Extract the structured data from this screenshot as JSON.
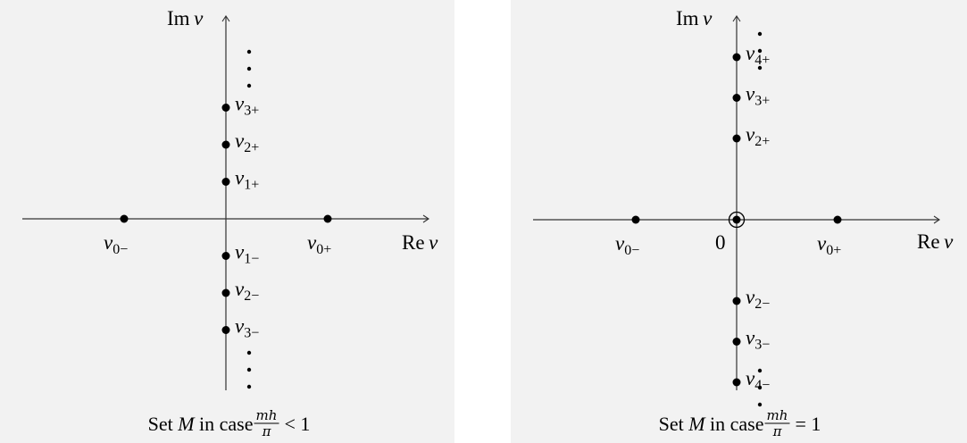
{
  "panels": [
    {
      "id": "left",
      "axis": {
        "im_label": "Im",
        "re_label": "Re",
        "var": "ν"
      },
      "caption": {
        "prefix": "Set",
        "set_name": "M",
        "mid": "in case",
        "num": "mh",
        "den": "π",
        "relation": "< 1"
      },
      "real_points": [
        {
          "name": "ν0−",
          "base": "ν",
          "sub": "0−",
          "re": -1
        },
        {
          "name": "ν0+",
          "base": "ν",
          "sub": "0+",
          "re": 1
        }
      ],
      "imag_points": [
        {
          "base": "ν",
          "sub": "3+",
          "im": 3
        },
        {
          "base": "ν",
          "sub": "2+",
          "im": 2
        },
        {
          "base": "ν",
          "sub": "1+",
          "im": 1
        },
        {
          "base": "ν",
          "sub": "1−",
          "im": -1
        },
        {
          "base": "ν",
          "sub": "2−",
          "im": -2
        },
        {
          "base": "ν",
          "sub": "3−",
          "im": -3
        }
      ],
      "origin_marked": false,
      "origin_label": ""
    },
    {
      "id": "right",
      "axis": {
        "im_label": "Im",
        "re_label": "Re",
        "var": "ν"
      },
      "caption": {
        "prefix": "Set",
        "set_name": "M",
        "mid": "in case",
        "num": "mh",
        "den": "π",
        "relation": "= 1"
      },
      "real_points": [
        {
          "name": "ν0−",
          "base": "ν",
          "sub": "0−",
          "re": -1
        },
        {
          "name": "ν0+",
          "base": "ν",
          "sub": "0+",
          "re": 1
        }
      ],
      "imag_points": [
        {
          "base": "ν",
          "sub": "4+",
          "im": 4
        },
        {
          "base": "ν",
          "sub": "3+",
          "im": 3
        },
        {
          "base": "ν",
          "sub": "2+",
          "im": 2
        },
        {
          "base": "ν",
          "sub": "2−",
          "im": -2
        },
        {
          "base": "ν",
          "sub": "3−",
          "im": -3
        },
        {
          "base": "ν",
          "sub": "4−",
          "im": -4
        }
      ],
      "origin_marked": true,
      "origin_label": "0"
    }
  ]
}
